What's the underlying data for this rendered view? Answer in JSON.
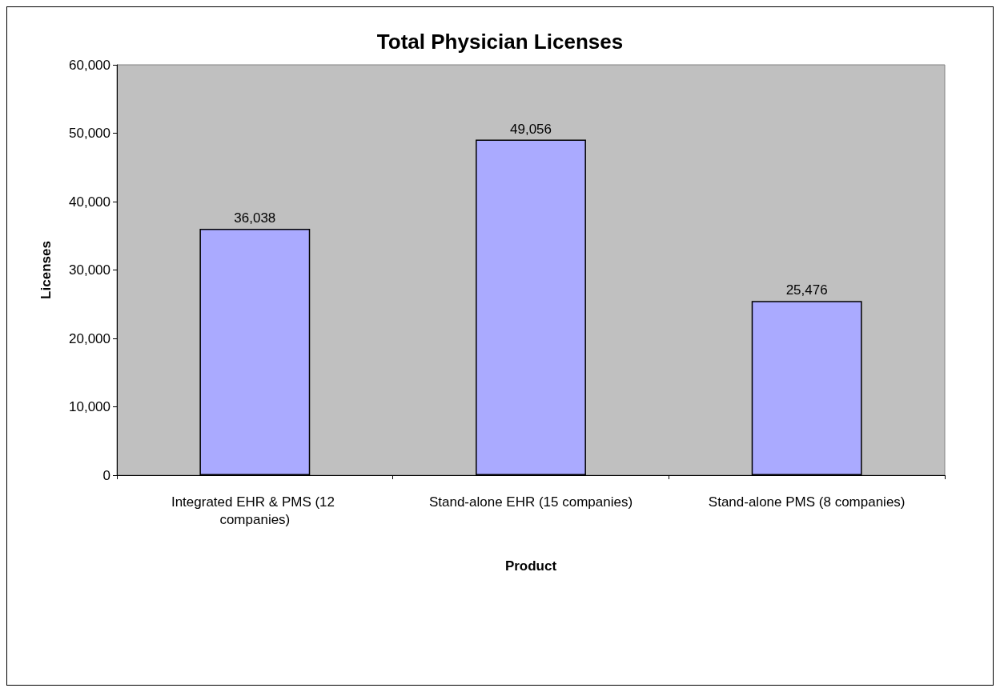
{
  "chart_data": {
    "type": "bar",
    "title": "Total Physician Licenses",
    "xlabel": "Product",
    "ylabel": "Licenses",
    "categories": [
      "Integrated EHR & PMS (12 companies)",
      "Stand-alone EHR (15 companies)",
      "Stand-alone PMS (8 companies)"
    ],
    "values": [
      36038,
      49056,
      25476
    ],
    "value_labels": [
      "36,038",
      "49,056",
      "25,476"
    ],
    "color": "#aaaaff",
    "ylim": [
      0,
      60000
    ],
    "yticks": [
      0,
      {
        "value": 10000,
        "label": "10,000"
      },
      {
        "value": 20000,
        "label": "20,000"
      },
      {
        "value": 30000,
        "label": "30,000"
      },
      {
        "value": 40000,
        "label": "40,000"
      },
      {
        "value": 50000,
        "label": "50,000"
      },
      {
        "value": 60000,
        "label": "60,000"
      }
    ],
    "grid": false
  }
}
